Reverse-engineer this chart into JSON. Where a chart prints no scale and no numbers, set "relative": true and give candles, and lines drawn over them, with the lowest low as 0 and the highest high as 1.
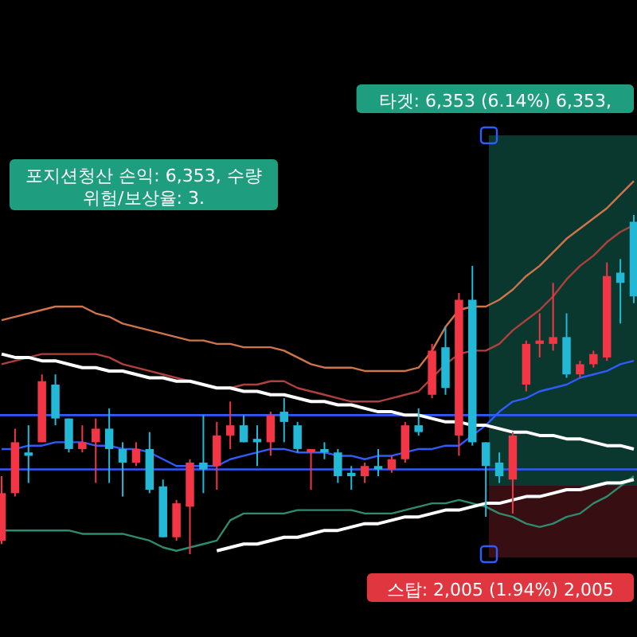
{
  "chart_data": {
    "type": "candlestick",
    "relative": true,
    "categories": [
      null,
      null,
      null,
      null,
      null,
      null,
      null,
      null,
      null,
      null,
      null,
      null,
      null,
      null,
      null,
      null,
      null,
      null,
      null,
      null,
      null,
      null,
      null,
      null,
      null,
      null,
      null,
      null,
      null,
      null,
      null,
      null,
      null,
      null,
      null,
      null,
      null,
      null,
      null,
      null,
      null,
      null,
      null,
      null,
      null,
      null,
      null,
      null
    ],
    "ohlc": [
      [
        0.04,
        0.23,
        0.03,
        0.18
      ],
      [
        0.18,
        0.37,
        0.17,
        0.33
      ],
      [
        0.3,
        0.38,
        0.21,
        0.29
      ],
      [
        0.33,
        0.53,
        0.33,
        0.51
      ],
      [
        0.5,
        0.53,
        0.38,
        0.4
      ],
      [
        0.4,
        0.4,
        0.3,
        0.31
      ],
      [
        0.31,
        0.38,
        0.3,
        0.33
      ],
      [
        0.33,
        0.4,
        0.21,
        0.37
      ],
      [
        0.37,
        0.43,
        0.21,
        0.31
      ],
      [
        0.31,
        0.33,
        0.17,
        0.27
      ],
      [
        0.27,
        0.33,
        0.26,
        0.31
      ],
      [
        0.31,
        0.36,
        0.18,
        0.19
      ],
      [
        0.2,
        0.22,
        0.05,
        0.05
      ],
      [
        0.05,
        0.16,
        0.04,
        0.15
      ],
      [
        0.14,
        0.28,
        0,
        0.27
      ],
      [
        0.27,
        0.41,
        0.18,
        0.25
      ],
      [
        0.26,
        0.39,
        0.19,
        0.35
      ],
      [
        0.35,
        0.45,
        0.31,
        0.38
      ],
      [
        0.38,
        0.41,
        0.33,
        0.33
      ],
      [
        0.34,
        0.38,
        0.26,
        0.33
      ],
      [
        0.33,
        0.42,
        0.29,
        0.41
      ],
      [
        0.42,
        0.46,
        0.33,
        0.39
      ],
      [
        0.38,
        0.39,
        0.3,
        0.31
      ],
      [
        0.3,
        0.31,
        0.19,
        0.31
      ],
      [
        0.31,
        0.33,
        0.28,
        0.3
      ],
      [
        0.3,
        0.31,
        0.21,
        0.23
      ],
      [
        0.24,
        0.26,
        0.19,
        0.23
      ],
      [
        0.23,
        0.27,
        0.21,
        0.26
      ],
      [
        0.26,
        0.31,
        0.23,
        0.25
      ],
      [
        0.25,
        0.29,
        0.24,
        0.28
      ],
      [
        0.28,
        0.39,
        0.27,
        0.38
      ],
      [
        0.38,
        0.43,
        0.35,
        0.36
      ],
      [
        0.47,
        0.62,
        0.46,
        0.6
      ],
      [
        0.61,
        0.67,
        0.47,
        0.49
      ],
      [
        0.35,
        0.77,
        0.29,
        0.75
      ],
      [
        0.75,
        0.85,
        0.32,
        0.33
      ],
      [
        0.33,
        0.33,
        0.11,
        0.26
      ],
      [
        0.27,
        0.3,
        0.21,
        0.23
      ],
      [
        0.22,
        0.36,
        0.12,
        0.35
      ],
      [
        0.5,
        0.63,
        0.48,
        0.62
      ],
      [
        0.62,
        0.71,
        0.58,
        0.63
      ],
      [
        0.62,
        0.8,
        0.6,
        0.64
      ],
      [
        0.64,
        0.71,
        0.52,
        0.53
      ],
      [
        0.53,
        0.57,
        0.52,
        0.56
      ],
      [
        0.56,
        0.6,
        0.55,
        0.59
      ],
      [
        0.58,
        0.86,
        0.57,
        0.82
      ],
      [
        0.83,
        0.87,
        0.68,
        0.8
      ],
      [
        0.98,
        1,
        0.74,
        0.76
      ]
    ],
    "colors": [
      "#f23645",
      "#f23645",
      "#22b8d6",
      "#f23645",
      "#22b8d6",
      "#22b8d6",
      "#f23645",
      "#f23645",
      "#22b8d6",
      "#22b8d6",
      "#f23645",
      "#22b8d6",
      "#22b8d6",
      "#f23645",
      "#f23645",
      "#22b8d6",
      "#f23645",
      "#f23645",
      "#22b8d6",
      "#22b8d6",
      "#f23645",
      "#22b8d6",
      "#22b8d6",
      "#f23645",
      "#22b8d6",
      "#22b8d6",
      "#22b8d6",
      "#f23645",
      "#22b8d6",
      "#f23645",
      "#f23645",
      "#22b8d6",
      "#f23645",
      "#22b8d6",
      "#f23645",
      "#22b8d6",
      "#22b8d6",
      "#22b8d6",
      "#f23645",
      "#f23645",
      "#f23645",
      "#f23645",
      "#22b8d6",
      "#f23645",
      "#f23645",
      "#f23645",
      "#22b8d6",
      "#22b8d6"
    ],
    "series": [
      {
        "type": "line",
        "color": "#d0744c",
        "values": [
          0.69,
          0.7,
          0.71,
          0.72,
          0.73,
          0.73,
          0.73,
          0.71,
          0.7,
          0.68,
          0.67,
          0.66,
          0.65,
          0.64,
          0.63,
          0.63,
          0.62,
          0.62,
          0.61,
          0.61,
          0.61,
          0.6,
          0.58,
          0.56,
          0.55,
          0.55,
          0.55,
          0.54,
          0.54,
          0.54,
          0.54,
          0.55,
          0.6,
          0.67,
          0.72,
          0.73,
          0.73,
          0.75,
          0.78,
          0.82,
          0.85,
          0.89,
          0.93,
          0.96,
          0.99,
          1.02,
          1.06,
          1.1
        ]
      },
      {
        "type": "line",
        "color": "#b0403c",
        "values": [
          0.56,
          0.57,
          0.58,
          0.59,
          0.59,
          0.59,
          0.59,
          0.59,
          0.58,
          0.56,
          0.55,
          0.54,
          0.53,
          0.52,
          0.51,
          0.5,
          0.49,
          0.49,
          0.5,
          0.5,
          0.51,
          0.51,
          0.49,
          0.48,
          0.47,
          0.46,
          0.45,
          0.45,
          0.45,
          0.46,
          0.47,
          0.48,
          0.52,
          0.56,
          0.59,
          0.6,
          0.6,
          0.62,
          0.66,
          0.69,
          0.72,
          0.76,
          0.81,
          0.85,
          0.88,
          0.92,
          0.95,
          0.97
        ]
      },
      {
        "type": "line",
        "color": "#2f5bff",
        "values": [
          0.31,
          0.31,
          0.32,
          0.32,
          0.33,
          0.33,
          0.33,
          0.32,
          0.32,
          0.31,
          0.31,
          0.3,
          0.28,
          0.26,
          0.26,
          0.26,
          0.26,
          0.28,
          0.29,
          0.3,
          0.31,
          0.31,
          0.3,
          0.3,
          0.3,
          0.29,
          0.29,
          0.28,
          0.29,
          0.29,
          0.3,
          0.31,
          0.31,
          0.32,
          0.32,
          0.35,
          0.38,
          0.42,
          0.45,
          0.46,
          0.48,
          0.49,
          0.5,
          0.52,
          0.53,
          0.54,
          0.56,
          0.57
        ]
      },
      {
        "type": "line",
        "color": "#2e8b6f",
        "values": [
          0.07,
          0.07,
          0.07,
          0.07,
          0.07,
          0.07,
          0.06,
          0.06,
          0.06,
          0.06,
          0.05,
          0.04,
          0.02,
          0.01,
          0.02,
          0.03,
          0.04,
          0.1,
          0.12,
          0.12,
          0.12,
          0.12,
          0.13,
          0.13,
          0.13,
          0.13,
          0.13,
          0.12,
          0.12,
          0.12,
          0.13,
          0.14,
          0.15,
          0.15,
          0.16,
          0.15,
          0.14,
          0.12,
          0.11,
          0.09,
          0.08,
          0.09,
          0.11,
          0.12,
          0.15,
          0.17,
          0.2,
          0.23
        ]
      },
      {
        "type": "line",
        "color": "#ffffff",
        "values": [
          0.59,
          0.58,
          0.58,
          0.57,
          0.57,
          0.56,
          0.55,
          0.55,
          0.54,
          0.54,
          0.53,
          0.52,
          0.52,
          0.51,
          0.51,
          0.5,
          0.49,
          0.49,
          0.48,
          0.48,
          0.47,
          0.47,
          0.46,
          0.45,
          0.45,
          0.44,
          0.44,
          0.43,
          0.42,
          0.42,
          0.41,
          0.41,
          0.4,
          0.39,
          0.39,
          0.38,
          0.38,
          0.37,
          0.36,
          0.36,
          0.35,
          0.35,
          0.34,
          0.34,
          0.33,
          0.32,
          0.32,
          0.31
        ]
      },
      {
        "type": "line",
        "color": "#ffffff",
        "values": [
          null,
          null,
          null,
          null,
          null,
          null,
          null,
          null,
          null,
          null,
          null,
          null,
          null,
          null,
          null,
          null,
          0.01,
          0.02,
          0.03,
          0.03,
          0.04,
          0.05,
          0.05,
          0.06,
          0.07,
          0.07,
          0.08,
          0.09,
          0.09,
          0.1,
          0.11,
          0.11,
          0.12,
          0.13,
          0.13,
          0.14,
          0.15,
          0.15,
          0.16,
          0.17,
          0.17,
          0.18,
          0.19,
          0.19,
          0.2,
          0.21,
          0.21,
          0.22
        ]
      }
    ],
    "ref_lines": [
      {
        "axis": "y",
        "value": 0.41,
        "color": "#2f5bff"
      },
      {
        "axis": "y",
        "value": 0.25,
        "color": "#2f5bff"
      }
    ],
    "annotations": [
      "타겟: 6,353 (6.14%) 6,353,",
      "포지션청산 손익: 6,353, 수량",
      "위험/보상율: 3.",
      "스탑: 2,005 (1.94%) 2,005"
    ]
  }
}
